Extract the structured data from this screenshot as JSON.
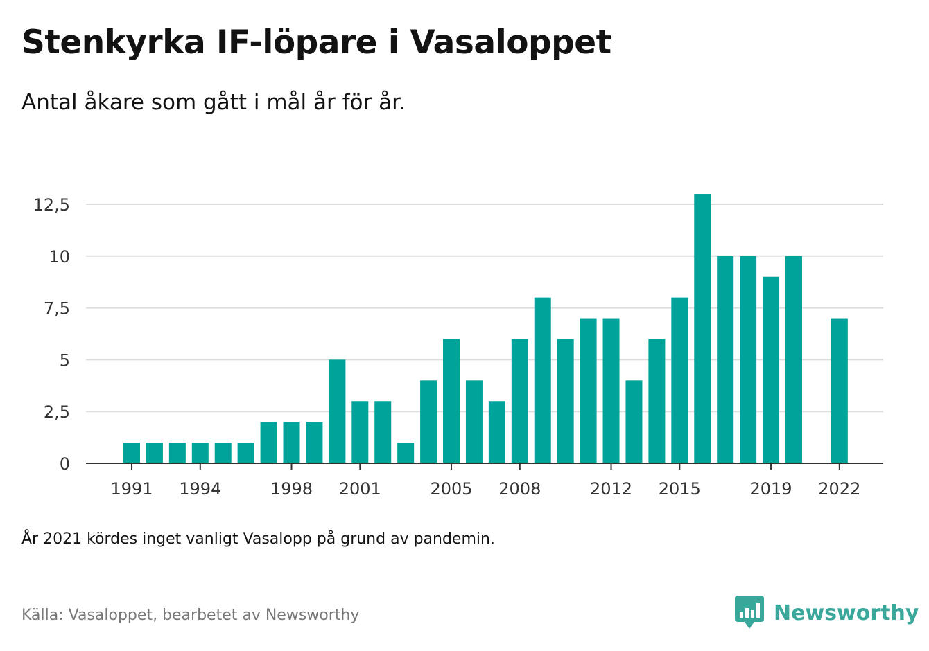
{
  "header": {
    "title": "Stenkyrka IF-löpare i Vasaloppet",
    "subtitle": "Antal åkare som gått i mål år för år."
  },
  "footer": {
    "note": "År 2021 kördes inget vanligt Vasalopp på grund av pandemin.",
    "source": "Källa: Vasaloppet, bearbetet av Newsworthy",
    "brand": "Newsworthy"
  },
  "colors": {
    "bar": "#00a39a",
    "brand": "#3aa79b",
    "grid": "#dddddd",
    "axis": "#333333"
  },
  "chart_data": {
    "type": "bar",
    "title": "Stenkyrka IF-löpare i Vasaloppet",
    "subtitle": "Antal åkare som gått i mål år för år.",
    "categories": [
      1991,
      1992,
      1993,
      1994,
      1995,
      1996,
      1997,
      1998,
      1999,
      2000,
      2001,
      2002,
      2003,
      2004,
      2005,
      2006,
      2007,
      2008,
      2009,
      2010,
      2011,
      2012,
      2013,
      2014,
      2015,
      2016,
      2017,
      2018,
      2019,
      2020,
      2021,
      2022
    ],
    "values": [
      1,
      1,
      1,
      1,
      1,
      1,
      2,
      2,
      2,
      5,
      3,
      3,
      1,
      4,
      6,
      4,
      3,
      6,
      8,
      6,
      7,
      7,
      4,
      6,
      8,
      13,
      10,
      10,
      9,
      10,
      null,
      7
    ],
    "xticks": [
      "1991",
      "1994",
      "1998",
      "2001",
      "2005",
      "2008",
      "2012",
      "2015",
      "2019",
      "2022"
    ],
    "yticks": [
      "0",
      "2,5",
      "5",
      "7,5",
      "10",
      "12,5"
    ],
    "ylim": [
      0,
      12.5
    ],
    "grid": true,
    "xlabel": "",
    "ylabel": ""
  }
}
